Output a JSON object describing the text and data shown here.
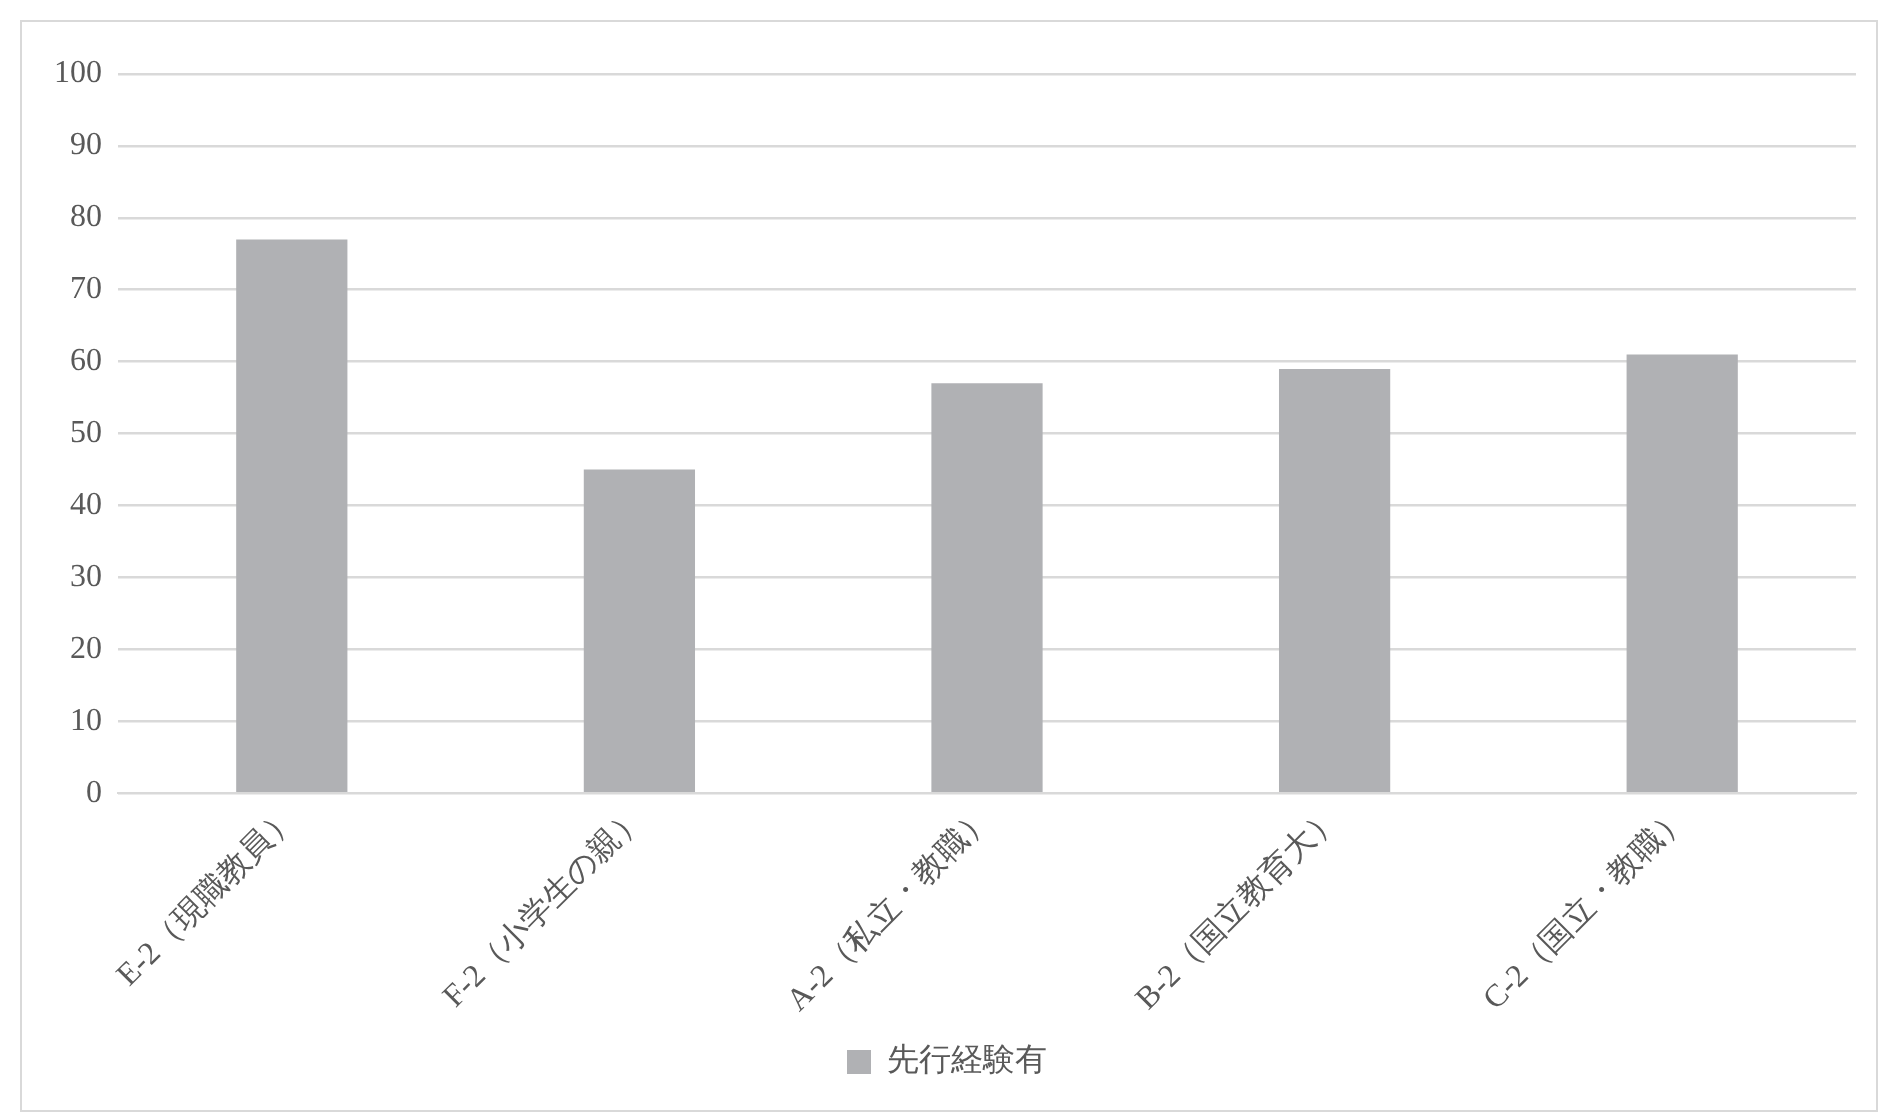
{
  "chart_data": {
    "type": "bar",
    "categories": [
      "E-2（現職教員）",
      "F-2（小学生の親）",
      "A-2（私立・教職）",
      "B-2（国立教育大）",
      "C-2（国立・教職）"
    ],
    "series": [
      {
        "name": "先行経験有",
        "color": "#b0b1b4",
        "values": [
          77,
          45,
          57,
          59,
          61
        ]
      }
    ],
    "ylim": [
      0,
      100
    ],
    "yticks": [
      0,
      10,
      20,
      30,
      40,
      50,
      60,
      70,
      80,
      90,
      100
    ],
    "grid": "y",
    "legend": "bottom"
  }
}
